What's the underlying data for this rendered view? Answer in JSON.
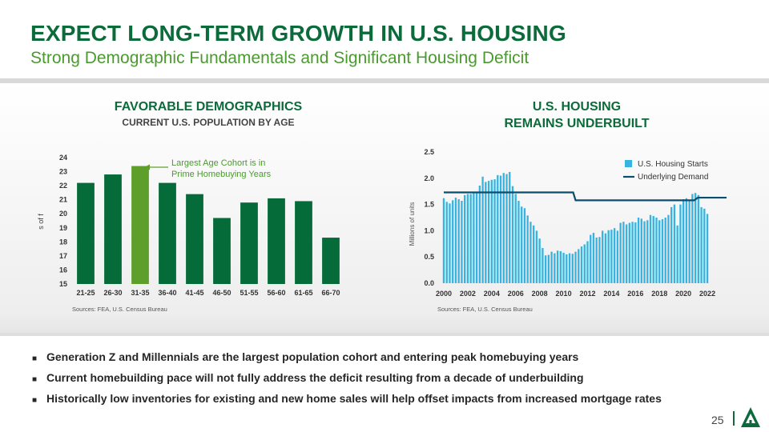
{
  "header": {
    "title": "EXPECT LONG-TERM GROWTH IN U.S. HOUSING",
    "subtitle": "Strong Demographic Fundamentals and Significant Housing Deficit"
  },
  "left_chart": {
    "heading": "FAVORABLE DEMOGRAPHICS",
    "subheading": "CURRENT U.S. POPULATION BY AGE",
    "source": "Sources: FEA, U.S. Census Bureau",
    "annotation_line1": "Largest Age Cohort is in",
    "annotation_line2": "Prime Homebuying Years"
  },
  "right_chart": {
    "heading_line1": "U.S. HOUSING",
    "heading_line2": "REMAINS UNDERBUILT",
    "source": "Sources: FEA, U.S. Census Bureau"
  },
  "chart_data": [
    {
      "type": "bar",
      "title": "CURRENT U.S. POPULATION BY AGE",
      "ylabel": "s of f",
      "categories": [
        "21-25",
        "26-30",
        "31-35",
        "36-40",
        "41-45",
        "46-50",
        "51-55",
        "56-60",
        "61-65",
        "66-70"
      ],
      "values": [
        22.2,
        22.8,
        23.4,
        22.2,
        21.4,
        19.7,
        20.8,
        21.1,
        20.9,
        18.3
      ],
      "highlight_index": 2,
      "ylim": [
        15,
        24
      ],
      "yticks": [
        15,
        16,
        17,
        18,
        19,
        20,
        21,
        22,
        23,
        24
      ],
      "colors": {
        "bar": "#056b39",
        "highlight": "#5e9e2a"
      },
      "annotation": "Largest Age Cohort is in Prime Homebuying Years"
    },
    {
      "type": "bar",
      "title": "U.S. HOUSING REMAINS UNDERBUILT",
      "ylabel": "Millions of units",
      "ylim": [
        0,
        2.5
      ],
      "yticks": [
        "0.0",
        "0.5",
        "1.0",
        "1.5",
        "2.0",
        "2.5"
      ],
      "xticks": [
        "2000",
        "2002",
        "2004",
        "2006",
        "2008",
        "2010",
        "2012",
        "2014",
        "2016",
        "2018",
        "2020",
        "2022"
      ],
      "series": [
        {
          "name": "U.S. Housing Starts",
          "color": "#36b3e0",
          "x_start": 2000,
          "step": 0.25,
          "values": [
            1.62,
            1.55,
            1.52,
            1.58,
            1.63,
            1.6,
            1.57,
            1.68,
            1.7,
            1.7,
            1.73,
            1.72,
            1.86,
            2.03,
            1.93,
            1.95,
            1.97,
            1.98,
            2.06,
            2.05,
            2.1,
            2.08,
            2.12,
            1.85,
            1.7,
            1.57,
            1.46,
            1.43,
            1.29,
            1.17,
            1.1,
            1.0,
            0.85,
            0.67,
            0.53,
            0.54,
            0.6,
            0.57,
            0.62,
            0.61,
            0.58,
            0.55,
            0.57,
            0.56,
            0.6,
            0.65,
            0.7,
            0.74,
            0.8,
            0.92,
            0.96,
            0.87,
            0.88,
            1.0,
            0.95,
            1.01,
            1.02,
            1.05,
            1.0,
            1.15,
            1.17,
            1.12,
            1.15,
            1.17,
            1.16,
            1.25,
            1.23,
            1.18,
            1.2,
            1.3,
            1.28,
            1.25,
            1.2,
            1.22,
            1.25,
            1.3,
            1.45,
            1.5,
            1.1,
            1.5,
            1.6,
            1.62,
            1.58,
            1.7,
            1.72,
            1.68,
            1.45,
            1.42,
            1.32
          ]
        },
        {
          "name": "Underlying Demand",
          "color": "#0a4d6c",
          "type": "line",
          "x": [
            2000,
            2010.8,
            2011,
            2020.9,
            2021.2,
            2023.6
          ],
          "values": [
            1.73,
            1.73,
            1.58,
            1.58,
            1.63,
            1.63
          ]
        }
      ]
    }
  ]
}
